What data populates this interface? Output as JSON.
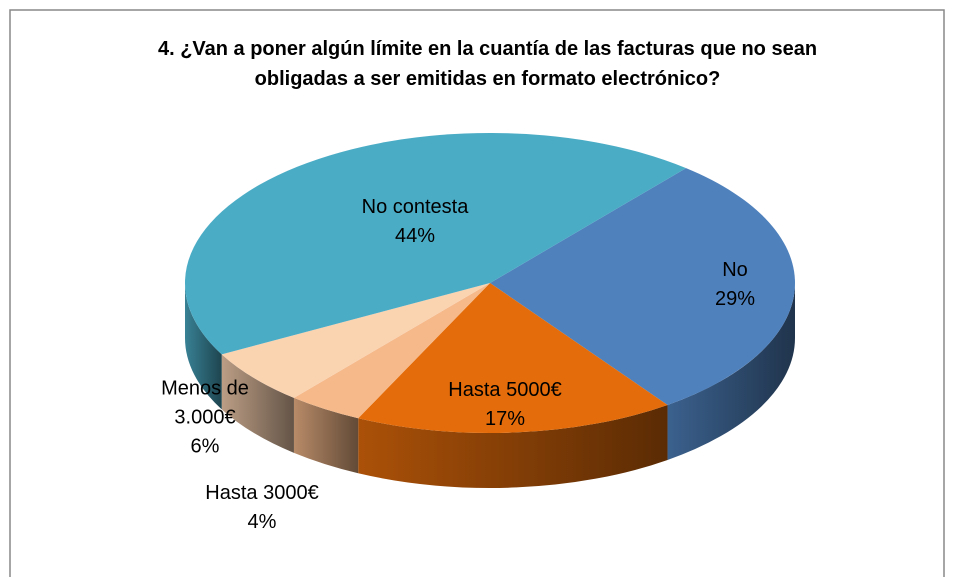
{
  "chart_data": {
    "type": "pie3d",
    "title": "4. ¿Van a poner algún límite en la cuantía de las facturas que no sean obligadas a ser emitidas en formato electrónico?",
    "categories": [
      "No",
      "Hasta 5000€",
      "Hasta 3000€",
      "Menos de 3.000€",
      "No contesta"
    ],
    "values": [
      29,
      17,
      4,
      6,
      44
    ],
    "value_labels": [
      "29%",
      "17%",
      "4%",
      "6%",
      "44%"
    ],
    "colors": [
      "#4f81bd",
      "#e46c0a",
      "#f5b98a",
      "#fad3b1",
      "#4bacc6"
    ]
  }
}
